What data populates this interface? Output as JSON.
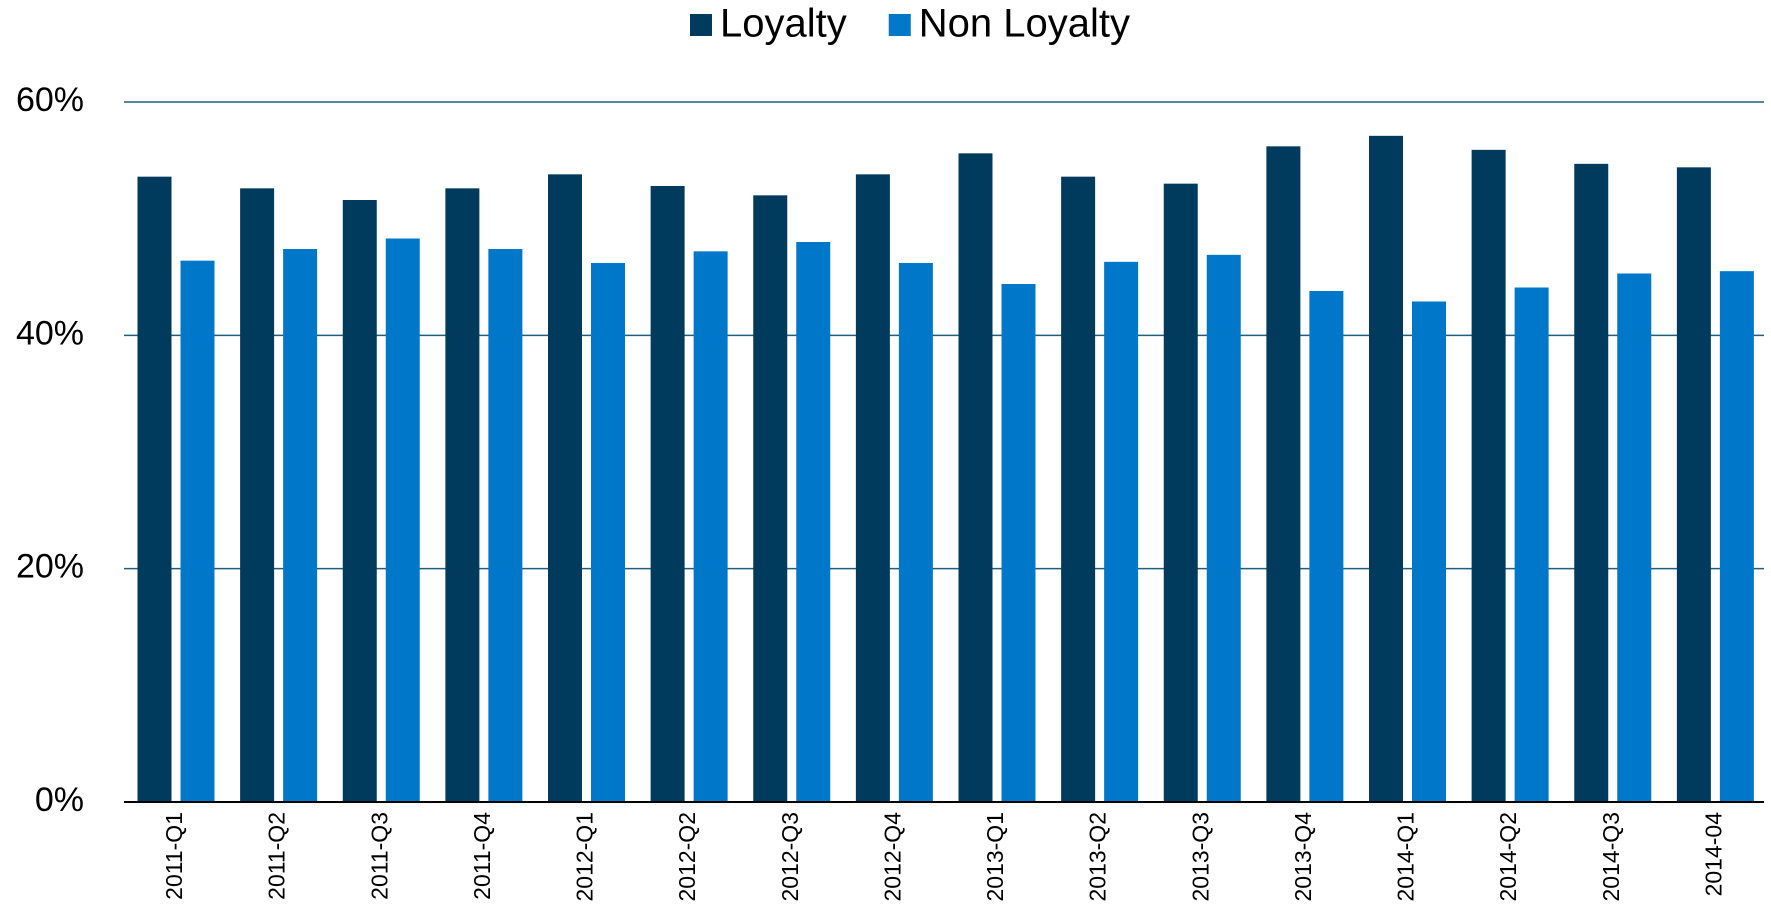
{
  "chart_data": {
    "type": "bar",
    "categories": [
      "2011-Q1",
      "2011-Q2",
      "2011-Q3",
      "2011-Q4",
      "2012-Q1",
      "2012-Q2",
      "2012-Q3",
      "2012-Q4",
      "2013-Q1",
      "2013-Q2",
      "2013-Q3",
      "2013-Q4",
      "2014-Q1",
      "2014-Q2",
      "2014-Q3",
      "2014-04"
    ],
    "series": [
      {
        "name": "Loyalty",
        "color": "#003a5c",
        "values": [
          53.6,
          52.6,
          51.6,
          52.6,
          53.8,
          52.8,
          52.0,
          53.8,
          55.6,
          53.6,
          53.0,
          56.2,
          57.1,
          55.9,
          54.7,
          54.4
        ]
      },
      {
        "name": "Non Loyalty",
        "color": "#0077c8",
        "values": [
          46.4,
          47.4,
          48.3,
          47.4,
          46.2,
          47.2,
          48.0,
          46.2,
          44.4,
          46.3,
          46.9,
          43.8,
          42.9,
          44.1,
          45.3,
          45.5
        ]
      }
    ],
    "ylim": [
      0,
      60
    ],
    "yticks": [
      {
        "value": 0,
        "label": "0%"
      },
      {
        "value": 20,
        "label": "20%"
      },
      {
        "value": 40,
        "label": "40%"
      },
      {
        "value": 60,
        "label": "60%"
      }
    ],
    "grid": true,
    "legend": "top"
  }
}
